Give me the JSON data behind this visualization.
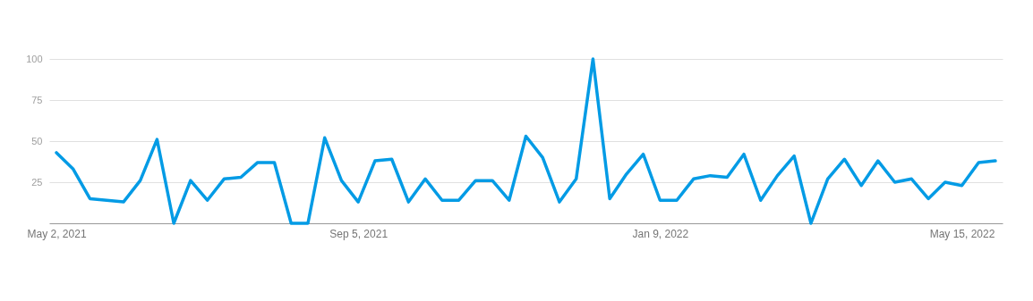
{
  "chart_data": {
    "type": "line",
    "x": [
      "2021-05-02",
      "2021-05-09",
      "2021-05-16",
      "2021-05-23",
      "2021-05-30",
      "2021-06-06",
      "2021-06-13",
      "2021-06-20",
      "2021-06-27",
      "2021-07-04",
      "2021-07-11",
      "2021-07-18",
      "2021-07-25",
      "2021-08-01",
      "2021-08-08",
      "2021-08-15",
      "2021-08-22",
      "2021-08-29",
      "2021-09-05",
      "2021-09-12",
      "2021-09-19",
      "2021-09-26",
      "2021-10-03",
      "2021-10-10",
      "2021-10-17",
      "2021-10-24",
      "2021-10-31",
      "2021-11-07",
      "2021-11-14",
      "2021-11-21",
      "2021-11-28",
      "2021-12-05",
      "2021-12-12",
      "2021-12-19",
      "2021-12-26",
      "2022-01-02",
      "2022-01-09",
      "2022-01-16",
      "2022-01-23",
      "2022-01-30",
      "2022-02-06",
      "2022-02-13",
      "2022-02-20",
      "2022-02-27",
      "2022-03-06",
      "2022-03-13",
      "2022-03-20",
      "2022-03-27",
      "2022-04-03",
      "2022-04-10",
      "2022-04-17",
      "2022-04-24",
      "2022-05-01",
      "2022-05-08",
      "2022-05-15",
      "2022-05-22",
      "2022-05-29"
    ],
    "series": [
      {
        "color": "#039be5",
        "values": [
          43,
          33,
          15,
          14,
          13,
          26,
          51,
          0,
          26,
          14,
          27,
          28,
          37,
          37,
          0,
          0,
          52,
          26,
          13,
          38,
          39,
          13,
          27,
          14,
          14,
          26,
          26,
          14,
          53,
          40,
          13,
          27,
          100,
          15,
          30,
          42,
          14,
          14,
          27,
          29,
          28,
          42,
          14,
          29,
          41,
          0,
          27,
          39,
          23,
          38,
          25,
          27,
          15,
          25,
          23,
          37,
          38
        ]
      }
    ],
    "xlim": [
      "2021-04-29",
      "2022-06-01"
    ],
    "xticks": [
      {
        "value": "2021-05-02",
        "label": "May 2, 2021"
      },
      {
        "value": "2021-09-05",
        "label": "Sep 5, 2021"
      },
      {
        "value": "2022-01-09",
        "label": "Jan 9, 2022"
      },
      {
        "value": "2022-05-15",
        "label": "May 15, 2022"
      }
    ],
    "ylim": [
      0,
      100
    ],
    "yticks": [
      25,
      50,
      75,
      100
    ],
    "grid": "y",
    "marker": "none",
    "line_style": "solid"
  }
}
